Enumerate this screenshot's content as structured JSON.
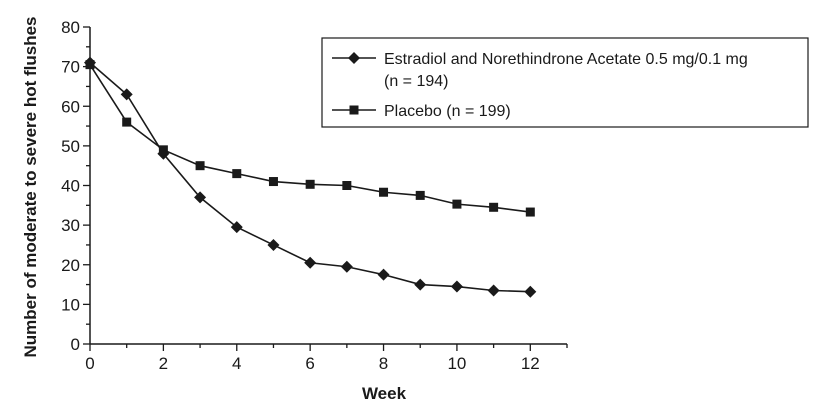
{
  "chart_data": {
    "type": "line",
    "title": "",
    "xlabel": "Week",
    "ylabel": "Number of moderate to severe hot flushes",
    "xlim": [
      0,
      13
    ],
    "ylim": [
      0,
      80
    ],
    "x_ticks": [
      0,
      2,
      4,
      6,
      8,
      10,
      12
    ],
    "y_ticks": [
      0,
      10,
      20,
      30,
      40,
      50,
      60,
      70,
      80
    ],
    "grid": false,
    "legend_position": "top-right",
    "series": [
      {
        "name": "Estradiol and Norethindrone Acetate 0.5 mg/0.1 mg (n = 194)",
        "legend_lines": [
          "Estradiol and Norethindrone Acetate 0.5 mg/0.1 mg",
          "(n = 194)"
        ],
        "marker": "diamond",
        "color": "#1a1a1a",
        "x": [
          0,
          1,
          2,
          3,
          4,
          5,
          6,
          7,
          8,
          9,
          10,
          11,
          12
        ],
        "y": [
          71,
          63,
          48,
          37,
          29.5,
          25,
          20.5,
          19.5,
          17.5,
          15,
          14.5,
          13.5,
          13.2
        ]
      },
      {
        "name": "Placebo (n = 199)",
        "legend_lines": [
          "Placebo (n = 199)"
        ],
        "marker": "square",
        "color": "#1a1a1a",
        "x": [
          0,
          1,
          2,
          3,
          4,
          5,
          6,
          7,
          8,
          9,
          10,
          11,
          12
        ],
        "y": [
          70.5,
          56,
          49,
          45,
          43,
          41,
          40.3,
          40,
          38.3,
          37.5,
          35.3,
          34.5,
          33.3
        ]
      }
    ]
  }
}
